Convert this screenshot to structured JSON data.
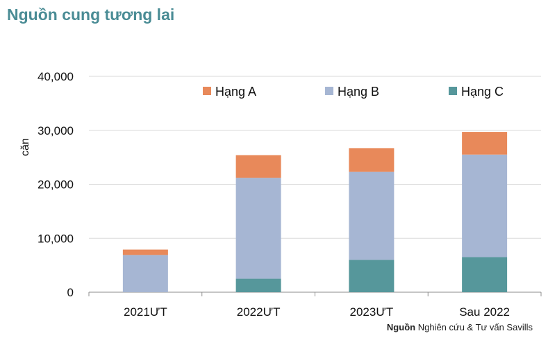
{
  "title": "Nguồn cung tương lai",
  "source": {
    "label": "Nguồn",
    "text": "Nghiên cứu & Tư vấn Savills"
  },
  "chart_data": {
    "type": "bar",
    "stacked": true,
    "categories": [
      "2021ƯT",
      "2022ƯT",
      "2023ƯT",
      "Sau 2022"
    ],
    "series": [
      {
        "name": "Hạng C",
        "color": "#56979b",
        "values": [
          0,
          2500,
          6000,
          6500
        ]
      },
      {
        "name": "Hạng B",
        "color": "#a6b6d3",
        "values": [
          6900,
          18700,
          16300,
          19000
        ]
      },
      {
        "name": "Hạng A",
        "color": "#e8895a",
        "values": [
          1000,
          4200,
          4400,
          4200
        ]
      }
    ],
    "legend_order": [
      "Hạng A",
      "Hạng B",
      "Hạng C"
    ],
    "ylabel": "căn",
    "xlabel": "",
    "ylim": [
      0,
      40000
    ],
    "yticks": [
      "0",
      "10,000",
      "20,000",
      "30,000",
      "40,000"
    ],
    "grid": true,
    "legend_position": "top"
  }
}
